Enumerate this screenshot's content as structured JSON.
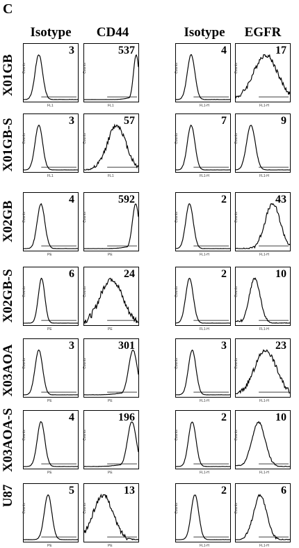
{
  "panel_label": "C",
  "column_headers": [
    "Isotype",
    "CD44",
    "Isotype",
    "EGFR"
  ],
  "rows": [
    {
      "label": "X01GB",
      "values": [
        "3",
        "537",
        "4",
        "17"
      ]
    },
    {
      "label": "X01GB-S",
      "values": [
        "3",
        "57",
        "7",
        "9"
      ]
    },
    {
      "label": "X02GB",
      "values": [
        "4",
        "592",
        "2",
        "43"
      ]
    },
    {
      "label": "X02GB-S",
      "values": [
        "6",
        "24",
        "2",
        "10"
      ]
    },
    {
      "label": "X03AOA",
      "values": [
        "3",
        "301",
        "3",
        "23"
      ]
    },
    {
      "label": "X03AOA-S",
      "values": [
        "4",
        "196",
        "2",
        "10"
      ]
    },
    {
      "label": "U87",
      "values": [
        "5",
        "13",
        "2",
        "6"
      ]
    }
  ]
}
